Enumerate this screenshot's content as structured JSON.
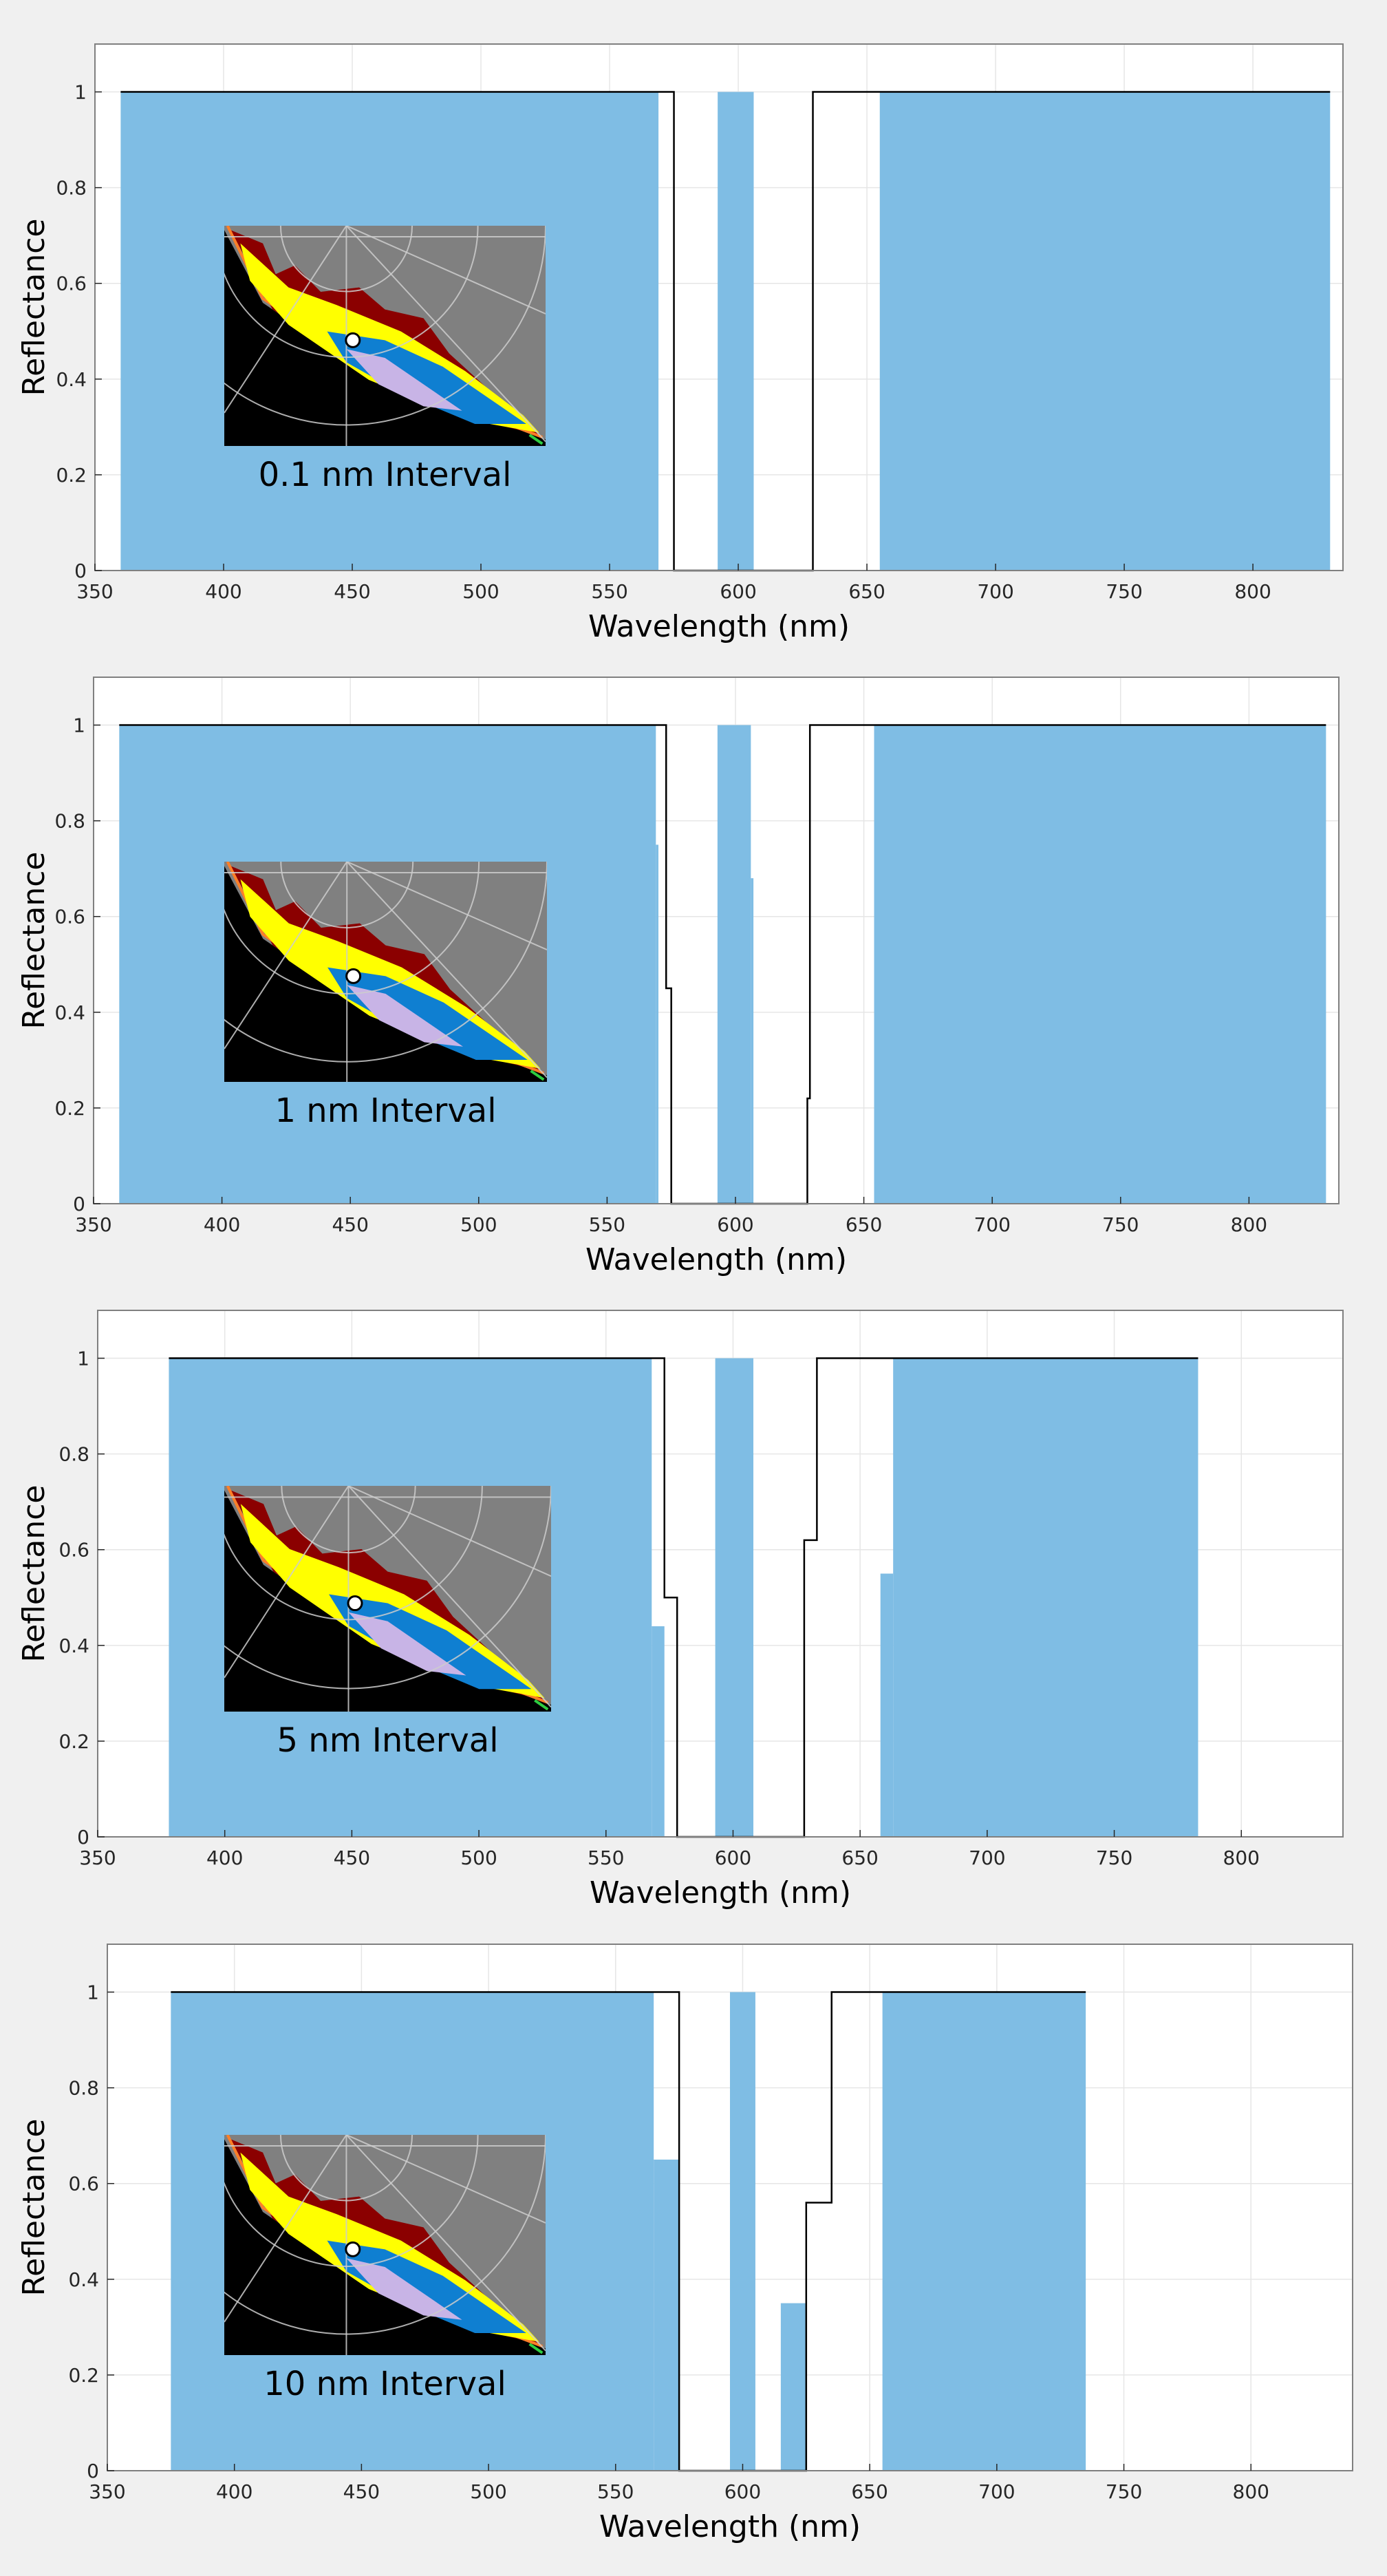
{
  "figure": {
    "background": "#f0f0f0",
    "bar_color": "#7fbde4",
    "line_color": "#000000",
    "grid_color": "#e6e6e6"
  },
  "chart_data": [
    {
      "type": "area",
      "title": "",
      "xlabel": "Wavelength (nm)",
      "ylabel": "Reflectance",
      "xlim": [
        350,
        835
      ],
      "ylim": [
        0,
        1.1
      ],
      "xticks": [
        350,
        400,
        450,
        500,
        550,
        600,
        650,
        700,
        750,
        800
      ],
      "yticks": [
        0,
        0.2,
        0.4,
        0.6,
        0.8,
        1
      ],
      "ytick_labels": [
        "0",
        "0.2",
        "0.4",
        "0.6",
        "0.8",
        "1"
      ],
      "grid": true,
      "inset_label": "0.1 nm Interval",
      "filled_bands": [
        {
          "x0": 360,
          "x1": 569,
          "y": 1
        },
        {
          "x0": 592,
          "x1": 606,
          "y": 1
        },
        {
          "x0": 655,
          "x1": 830,
          "y": 1
        }
      ],
      "reflectance_curve": {
        "x": [
          360,
          575,
          575,
          629,
          629,
          830
        ],
        "y": [
          1,
          1,
          0,
          0,
          1,
          1
        ]
      }
    },
    {
      "type": "area",
      "title": "",
      "xlabel": "Wavelength (nm)",
      "ylabel": "Reflectance",
      "xlim": [
        350,
        835
      ],
      "ylim": [
        0,
        1.1
      ],
      "xticks": [
        350,
        400,
        450,
        500,
        550,
        600,
        650,
        700,
        750,
        800
      ],
      "yticks": [
        0,
        0.2,
        0.4,
        0.6,
        0.8,
        1
      ],
      "ytick_labels": [
        "0",
        "0.2",
        "0.4",
        "0.6",
        "0.8",
        "1"
      ],
      "grid": true,
      "inset_label": "1 nm Interval",
      "filled_bands": [
        {
          "x0": 360,
          "x1": 569,
          "y": 1
        },
        {
          "x0": 569,
          "x1": 570,
          "y": 0.75
        },
        {
          "x0": 593,
          "x1": 606,
          "y": 1
        },
        {
          "x0": 606,
          "x1": 607,
          "y": 0.68
        },
        {
          "x0": 654,
          "x1": 830,
          "y": 1
        }
      ],
      "reflectance_curve": {
        "x": [
          360,
          573,
          573,
          574,
          574,
          575,
          575,
          628,
          628,
          629,
          629,
          830
        ],
        "y": [
          1,
          1,
          0.45,
          0.45,
          0.45,
          0.45,
          0,
          0,
          0.22,
          0.22,
          1,
          1
        ]
      }
    },
    {
      "type": "area",
      "title": "",
      "xlabel": "Wavelength (nm)",
      "ylabel": "Reflectance",
      "xlim": [
        350,
        840
      ],
      "ylim": [
        0,
        1.1
      ],
      "xticks": [
        350,
        400,
        450,
        500,
        550,
        600,
        650,
        700,
        750,
        800
      ],
      "yticks": [
        0,
        0.2,
        0.4,
        0.6,
        0.8,
        1
      ],
      "ytick_labels": [
        "0",
        "0.2",
        "0.4",
        "0.6",
        "0.8",
        "1"
      ],
      "grid": true,
      "inset_label": "5 nm Interval",
      "filled_bands": [
        {
          "x0": 378,
          "x1": 568,
          "y": 1
        },
        {
          "x0": 568,
          "x1": 573,
          "y": 0.44
        },
        {
          "x0": 593,
          "x1": 608,
          "y": 1
        },
        {
          "x0": 658,
          "x1": 663,
          "y": 0.55
        },
        {
          "x0": 663,
          "x1": 783,
          "y": 1
        }
      ],
      "reflectance_curve": {
        "x": [
          378,
          573,
          573,
          578,
          578,
          628,
          628,
          633,
          633,
          783
        ],
        "y": [
          1,
          1,
          0.5,
          0.5,
          0,
          0,
          0.62,
          0.62,
          1,
          1
        ]
      }
    },
    {
      "type": "area",
      "title": "",
      "xlabel": "Wavelength (nm)",
      "ylabel": "Reflectance",
      "xlim": [
        350,
        840
      ],
      "ylim": [
        0,
        1.1
      ],
      "xticks": [
        350,
        400,
        450,
        500,
        550,
        600,
        650,
        700,
        750,
        800
      ],
      "yticks": [
        0,
        0.2,
        0.4,
        0.6,
        0.8,
        1
      ],
      "ytick_labels": [
        "0",
        "0.2",
        "0.4",
        "0.6",
        "0.8",
        "1"
      ],
      "grid": true,
      "inset_label": "10 nm Interval",
      "filled_bands": [
        {
          "x0": 375,
          "x1": 565,
          "y": 1
        },
        {
          "x0": 565,
          "x1": 575,
          "y": 0.65
        },
        {
          "x0": 595,
          "x1": 605,
          "y": 1
        },
        {
          "x0": 615,
          "x1": 625,
          "y": 0.35
        },
        {
          "x0": 655,
          "x1": 735,
          "y": 1
        }
      ],
      "reflectance_curve": {
        "x": [
          375,
          575,
          575,
          625,
          625,
          635,
          635,
          735
        ],
        "y": [
          1,
          1,
          0,
          0,
          0.56,
          0.56,
          1,
          1
        ]
      }
    }
  ]
}
